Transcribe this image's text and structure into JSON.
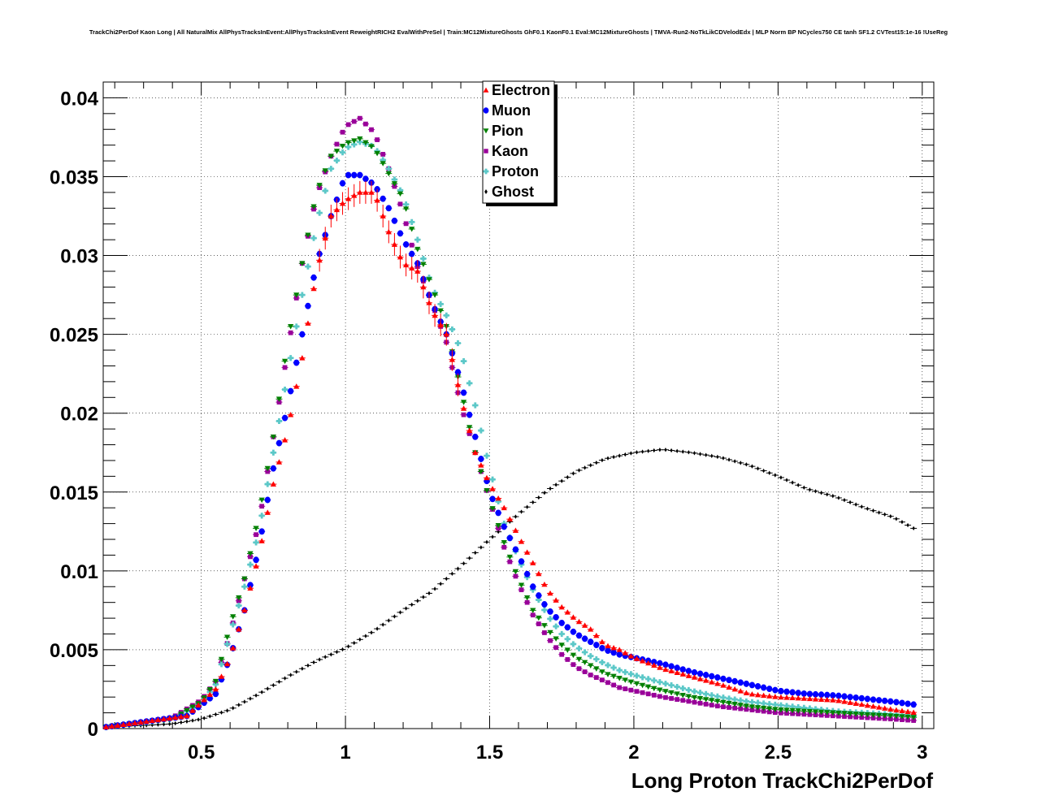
{
  "chart_data": {
    "type": "scatter",
    "title": "TrackChi2PerDof Kaon Long | All NaturalMix AllPhysTracksInEvent:AllPhysTracksInEvent ReweightRICH2 EvalWithPreSel | Train:MC12MixtureGhosts GhF0.1 KaonF0.1 Eval:MC12MixtureGhosts | TMVA-Run2-NoTkLikCDVelodEdx | MLP Norm BP NCycles750 CE tanh SF1.2 CVTest15:1e-16 !UseReg",
    "xlabel": "Long Proton TrackChi2PerDof",
    "ylabel": "",
    "xlim": [
      0.16,
      3.04
    ],
    "ylim": [
      0,
      0.041
    ],
    "x_ticks": [
      0.5,
      1,
      1.5,
      2,
      2.5,
      3
    ],
    "x_tick_labels": [
      "0.5",
      "1",
      "1.5",
      "2",
      "2.5",
      "3"
    ],
    "y_ticks": [
      0,
      0.005,
      0.01,
      0.015,
      0.02,
      0.025,
      0.03,
      0.035,
      0.04
    ],
    "y_tick_labels": [
      "0",
      "0.005",
      "0.01",
      "0.015",
      "0.02",
      "0.025",
      "0.03",
      "0.035",
      "0.04"
    ],
    "grid": true,
    "legend_position": "top-center",
    "bin_width": 0.02,
    "series": [
      {
        "name": "Electron",
        "color": "#ff0000",
        "marker": "triangle-up",
        "points": [
          [
            0.17,
            0.0001
          ],
          [
            0.45,
            0.0008
          ],
          [
            0.55,
            0.0025
          ],
          [
            0.6,
            0.0045
          ],
          [
            0.65,
            0.0075
          ],
          [
            0.7,
            0.011
          ],
          [
            0.75,
            0.0155
          ],
          [
            0.8,
            0.019
          ],
          [
            0.85,
            0.0235
          ],
          [
            0.9,
            0.029
          ],
          [
            0.95,
            0.0325
          ],
          [
            1.0,
            0.0335
          ],
          [
            1.05,
            0.034
          ],
          [
            1.1,
            0.034
          ],
          [
            1.15,
            0.0315
          ],
          [
            1.2,
            0.0295
          ],
          [
            1.25,
            0.029
          ],
          [
            1.3,
            0.0265
          ],
          [
            1.35,
            0.025
          ],
          [
            1.4,
            0.021
          ],
          [
            1.45,
            0.0175
          ],
          [
            1.5,
            0.0155
          ],
          [
            1.55,
            0.014
          ],
          [
            1.6,
            0.0122
          ],
          [
            1.65,
            0.0105
          ],
          [
            1.7,
            0.0088
          ],
          [
            1.75,
            0.0077
          ],
          [
            1.8,
            0.0069
          ],
          [
            1.85,
            0.0063
          ],
          [
            1.9,
            0.0053
          ],
          [
            1.95,
            0.005
          ],
          [
            2.0,
            0.0045
          ],
          [
            2.1,
            0.0038
          ],
          [
            2.2,
            0.0033
          ],
          [
            2.3,
            0.0028
          ],
          [
            2.4,
            0.0022
          ],
          [
            2.5,
            0.002
          ],
          [
            2.6,
            0.0019
          ],
          [
            2.7,
            0.0018
          ],
          [
            2.8,
            0.0015
          ],
          [
            2.9,
            0.0012
          ],
          [
            2.98,
            0.001
          ]
        ]
      },
      {
        "name": "Muon",
        "color": "#0000ff",
        "marker": "circle",
        "points": [
          [
            0.17,
            0.0001
          ],
          [
            0.45,
            0.0008
          ],
          [
            0.55,
            0.0022
          ],
          [
            0.6,
            0.0045
          ],
          [
            0.65,
            0.0075
          ],
          [
            0.7,
            0.0115
          ],
          [
            0.75,
            0.0165
          ],
          [
            0.8,
            0.0205
          ],
          [
            0.85,
            0.025
          ],
          [
            0.9,
            0.0295
          ],
          [
            0.95,
            0.0325
          ],
          [
            1.0,
            0.0351
          ],
          [
            1.05,
            0.0351
          ],
          [
            1.1,
            0.0345
          ],
          [
            1.15,
            0.033
          ],
          [
            1.2,
            0.031
          ],
          [
            1.25,
            0.0295
          ],
          [
            1.3,
            0.027
          ],
          [
            1.35,
            0.025
          ],
          [
            1.4,
            0.022
          ],
          [
            1.45,
            0.0185
          ],
          [
            1.5,
            0.015
          ],
          [
            1.55,
            0.0128
          ],
          [
            1.6,
            0.011
          ],
          [
            1.65,
            0.009
          ],
          [
            1.7,
            0.0076
          ],
          [
            1.75,
            0.0067
          ],
          [
            1.8,
            0.006
          ],
          [
            1.85,
            0.0055
          ],
          [
            1.9,
            0.005
          ],
          [
            1.95,
            0.0047
          ],
          [
            2.0,
            0.0045
          ],
          [
            2.1,
            0.0041
          ],
          [
            2.2,
            0.0036
          ],
          [
            2.3,
            0.0032
          ],
          [
            2.4,
            0.0028
          ],
          [
            2.5,
            0.0024
          ],
          [
            2.6,
            0.0022
          ],
          [
            2.7,
            0.0021
          ],
          [
            2.8,
            0.0019
          ],
          [
            2.9,
            0.0017
          ],
          [
            2.98,
            0.0015
          ]
        ]
      },
      {
        "name": "Pion",
        "color": "#008000",
        "marker": "triangle-down",
        "points": [
          [
            0.17,
            0.0001
          ],
          [
            0.4,
            0.0006
          ],
          [
            0.5,
            0.0017
          ],
          [
            0.55,
            0.003
          ],
          [
            0.6,
            0.0065
          ],
          [
            0.65,
            0.0095
          ],
          [
            0.7,
            0.0135
          ],
          [
            0.75,
            0.0185
          ],
          [
            0.8,
            0.0245
          ],
          [
            0.85,
            0.0295
          ],
          [
            0.9,
            0.034
          ],
          [
            0.95,
            0.0363
          ],
          [
            1.0,
            0.0371
          ],
          [
            1.05,
            0.0374
          ],
          [
            1.1,
            0.0368
          ],
          [
            1.15,
            0.0352
          ],
          [
            1.2,
            0.0336
          ],
          [
            1.25,
            0.0304
          ],
          [
            1.3,
            0.028
          ],
          [
            1.35,
            0.0255
          ],
          [
            1.4,
            0.0215
          ],
          [
            1.45,
            0.0175
          ],
          [
            1.5,
            0.0145
          ],
          [
            1.55,
            0.0118
          ],
          [
            1.6,
            0.0095
          ],
          [
            1.65,
            0.0075
          ],
          [
            1.7,
            0.0063
          ],
          [
            1.75,
            0.0053
          ],
          [
            1.8,
            0.0045
          ],
          [
            1.85,
            0.004
          ],
          [
            1.9,
            0.0035
          ],
          [
            1.95,
            0.0032
          ],
          [
            2.0,
            0.0029
          ],
          [
            2.1,
            0.0024
          ],
          [
            2.2,
            0.002
          ],
          [
            2.3,
            0.0017
          ],
          [
            2.4,
            0.0014
          ],
          [
            2.5,
            0.0012
          ],
          [
            2.6,
            0.0011
          ],
          [
            2.7,
            0.001
          ],
          [
            2.8,
            0.0009
          ],
          [
            2.9,
            0.0008
          ],
          [
            2.98,
            0.0007
          ]
        ]
      },
      {
        "name": "Kaon",
        "color": "#990099",
        "marker": "square",
        "points": [
          [
            0.17,
            0.0001
          ],
          [
            0.4,
            0.0007
          ],
          [
            0.5,
            0.0018
          ],
          [
            0.55,
            0.003
          ],
          [
            0.6,
            0.006
          ],
          [
            0.65,
            0.0095
          ],
          [
            0.7,
            0.013
          ],
          [
            0.75,
            0.0185
          ],
          [
            0.8,
            0.024
          ],
          [
            0.85,
            0.0295
          ],
          [
            0.9,
            0.0338
          ],
          [
            0.95,
            0.0363
          ],
          [
            1.0,
            0.0382
          ],
          [
            1.05,
            0.0387
          ],
          [
            1.1,
            0.0378
          ],
          [
            1.15,
            0.0355
          ],
          [
            1.2,
            0.0327
          ],
          [
            1.25,
            0.0293
          ],
          [
            1.3,
            0.027
          ],
          [
            1.35,
            0.0245
          ],
          [
            1.4,
            0.0205
          ],
          [
            1.45,
            0.0175
          ],
          [
            1.5,
            0.0145
          ],
          [
            1.55,
            0.0115
          ],
          [
            1.6,
            0.0092
          ],
          [
            1.65,
            0.0072
          ],
          [
            1.7,
            0.0058
          ],
          [
            1.75,
            0.0047
          ],
          [
            1.8,
            0.0039
          ],
          [
            1.85,
            0.0034
          ],
          [
            1.9,
            0.003
          ],
          [
            1.95,
            0.0026
          ],
          [
            2.0,
            0.0024
          ],
          [
            2.1,
            0.002
          ],
          [
            2.2,
            0.0017
          ],
          [
            2.3,
            0.0014
          ],
          [
            2.4,
            0.0012
          ],
          [
            2.5,
            0.001
          ],
          [
            2.6,
            0.0009
          ],
          [
            2.7,
            0.0008
          ],
          [
            2.8,
            0.0007
          ],
          [
            2.9,
            0.0006
          ],
          [
            2.98,
            0.0005
          ]
        ]
      },
      {
        "name": "Proton",
        "color": "#5cc8c8",
        "marker": "cross",
        "points": [
          [
            0.17,
            0.0001
          ],
          [
            0.4,
            0.0006
          ],
          [
            0.5,
            0.0016
          ],
          [
            0.55,
            0.0028
          ],
          [
            0.6,
            0.006
          ],
          [
            0.65,
            0.009
          ],
          [
            0.7,
            0.0125
          ],
          [
            0.75,
            0.0175
          ],
          [
            0.8,
            0.0225
          ],
          [
            0.85,
            0.0275
          ],
          [
            0.9,
            0.032
          ],
          [
            0.95,
            0.0355
          ],
          [
            1.0,
            0.0368
          ],
          [
            1.05,
            0.0372
          ],
          [
            1.1,
            0.0369
          ],
          [
            1.15,
            0.0355
          ],
          [
            1.2,
            0.0338
          ],
          [
            1.25,
            0.031
          ],
          [
            1.3,
            0.028
          ],
          [
            1.35,
            0.0262
          ],
          [
            1.4,
            0.024
          ],
          [
            1.45,
            0.0205
          ],
          [
            1.5,
            0.0165
          ],
          [
            1.55,
            0.013
          ],
          [
            1.6,
            0.0108
          ],
          [
            1.65,
            0.0088
          ],
          [
            1.7,
            0.0072
          ],
          [
            1.75,
            0.006
          ],
          [
            1.8,
            0.0052
          ],
          [
            1.85,
            0.0046
          ],
          [
            1.9,
            0.0041
          ],
          [
            1.95,
            0.0037
          ],
          [
            2.0,
            0.0034
          ],
          [
            2.1,
            0.0029
          ],
          [
            2.2,
            0.0024
          ],
          [
            2.3,
            0.002
          ],
          [
            2.4,
            0.0017
          ],
          [
            2.5,
            0.0015
          ],
          [
            2.6,
            0.0013
          ],
          [
            2.7,
            0.0011
          ],
          [
            2.8,
            0.001
          ],
          [
            2.9,
            0.0009
          ],
          [
            2.98,
            0.0008
          ]
        ]
      },
      {
        "name": "Ghost",
        "color": "#000000",
        "marker": "diamond",
        "points": [
          [
            0.17,
            0.0001
          ],
          [
            0.3,
            0.0002
          ],
          [
            0.4,
            0.0003
          ],
          [
            0.5,
            0.0006
          ],
          [
            0.6,
            0.0012
          ],
          [
            0.7,
            0.0022
          ],
          [
            0.8,
            0.0033
          ],
          [
            0.9,
            0.0043
          ],
          [
            1.0,
            0.0051
          ],
          [
            1.1,
            0.0062
          ],
          [
            1.2,
            0.0075
          ],
          [
            1.3,
            0.0087
          ],
          [
            1.4,
            0.0103
          ],
          [
            1.5,
            0.012
          ],
          [
            1.6,
            0.0136
          ],
          [
            1.7,
            0.0151
          ],
          [
            1.8,
            0.0163
          ],
          [
            1.9,
            0.0171
          ],
          [
            2.0,
            0.0175
          ],
          [
            2.1,
            0.0177
          ],
          [
            2.2,
            0.0175
          ],
          [
            2.3,
            0.0172
          ],
          [
            2.4,
            0.0167
          ],
          [
            2.5,
            0.016
          ],
          [
            2.6,
            0.0152
          ],
          [
            2.7,
            0.0147
          ],
          [
            2.8,
            0.014
          ],
          [
            2.9,
            0.0134
          ],
          [
            2.98,
            0.0126
          ]
        ]
      }
    ]
  }
}
